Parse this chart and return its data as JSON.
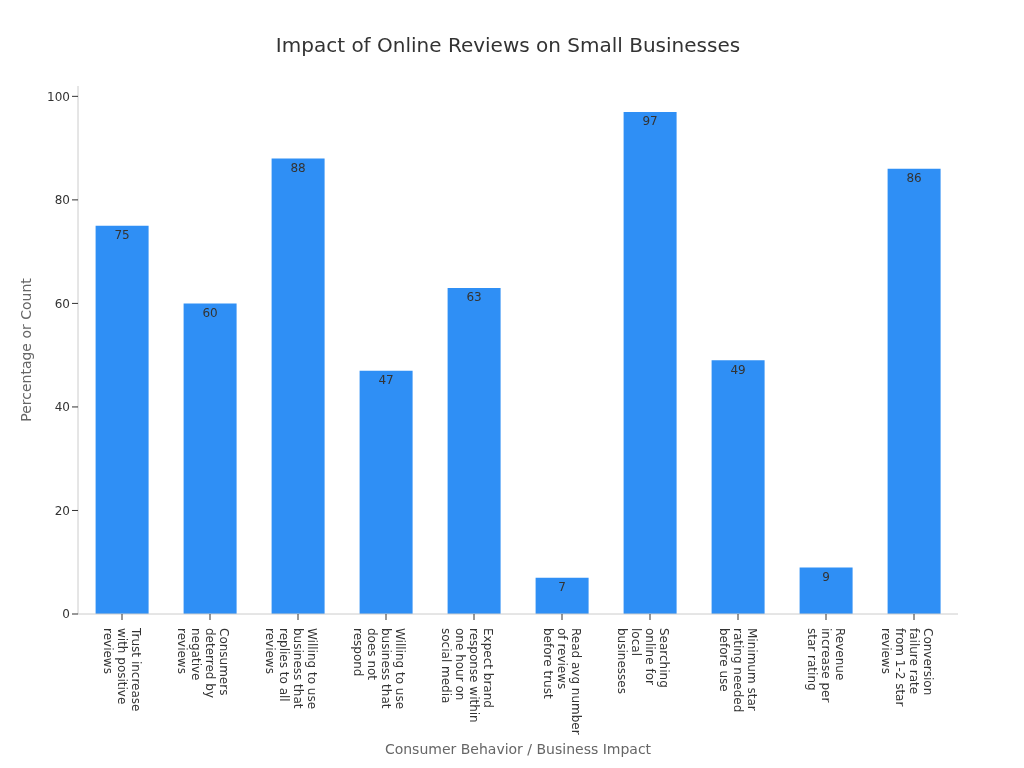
{
  "chart_data": {
    "type": "bar",
    "title": "Impact of Online Reviews on Small Businesses",
    "xlabel": "Consumer Behavior / Business Impact",
    "ylabel": "Percentage or Count",
    "categories": [
      "Trust increase with positive reviews",
      "Consumers deterred by negative reviews",
      "Willing to use business that replies to all reviews",
      "Willing to use business that does not respond",
      "Expect brand response within one hour on social media",
      "Read avg number of reviews before trust",
      "Searching online for local businesses",
      "Minimum star rating needed before use",
      "Revenue increase per star rating",
      "Conversion failure rate from 1-2 star reviews"
    ],
    "values": [
      75,
      60,
      88,
      47,
      63,
      7,
      97,
      49,
      9,
      86
    ],
    "color": "#2f8ff5",
    "ylim": [
      0,
      102
    ],
    "yticks": [
      0,
      20,
      40,
      60,
      80,
      100
    ],
    "grid": false,
    "data_labels": true
  }
}
